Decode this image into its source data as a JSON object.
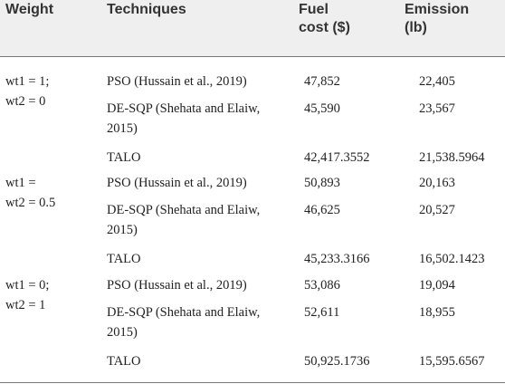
{
  "table": {
    "header": [
      "Weight",
      "Techniques",
      "Fuel cost ($)",
      "Emission (lb)"
    ],
    "groups": [
      {
        "weight": [
          "wt1 = 1;",
          "wt2 = 0"
        ],
        "rows": [
          [
            "PSO (Hussain et al., 2019)",
            "47,852",
            "22,405"
          ],
          [
            "DE-SQP (Shehata and Elaiw, 2015)",
            "45,590",
            "23,567"
          ],
          [
            "TALO",
            "42,417.3552",
            "21,538.5964"
          ]
        ]
      },
      {
        "weight": [
          "wt1 =",
          "wt2 = 0.5"
        ],
        "rows": [
          [
            "PSO (Hussain et al., 2019)",
            "50,893",
            "20,163"
          ],
          [
            "DE-SQP (Shehata and Elaiw, 2015)",
            "46,625",
            "20,527"
          ],
          [
            "TALO",
            "45,233.3166",
            "16,502.1423"
          ]
        ]
      },
      {
        "weight": [
          "wt1 = 0;",
          "wt2 = 1"
        ],
        "rows": [
          [
            "PSO (Hussain et al., 2019)",
            "53,086",
            "19,094"
          ],
          [
            "DE-SQP (Shehata and Elaiw, 2015)",
            "52,611",
            "18,955"
          ],
          [
            "TALO",
            "50,925.1736",
            "15,595.6567"
          ]
        ]
      }
    ]
  }
}
